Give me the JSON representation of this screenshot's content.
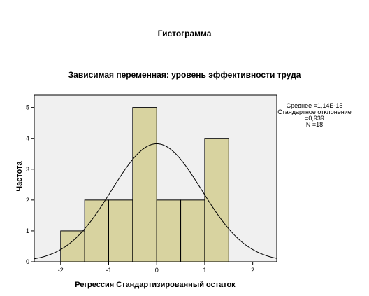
{
  "chart_data": {
    "type": "bar",
    "title": "Гистограмма",
    "subtitle": "Зависимая переменная: уровень эффективности труда",
    "xlabel": "Регрессия Стандартизированный остаток",
    "ylabel": "Частота",
    "xlim": [
      -2.55,
      2.5
    ],
    "ylim": [
      0,
      5.4
    ],
    "x_ticks": [
      "-2",
      "-1",
      "0",
      "1",
      "2"
    ],
    "y_ticks": [
      "0",
      "1",
      "2",
      "3",
      "4",
      "5"
    ],
    "bins": [
      {
        "from": -2.0,
        "to": -1.5,
        "count": 1
      },
      {
        "from": -1.5,
        "to": -1.0,
        "count": 2
      },
      {
        "from": -1.0,
        "to": -0.5,
        "count": 2
      },
      {
        "from": -0.5,
        "to": 0.0,
        "count": 5
      },
      {
        "from": 0.0,
        "to": 0.5,
        "count": 2
      },
      {
        "from": 0.5,
        "to": 1.0,
        "count": 2
      },
      {
        "from": 1.0,
        "to": 1.5,
        "count": 4
      }
    ],
    "normal_curve": {
      "mean": 0.0,
      "sd": 0.939,
      "n": 18,
      "bin_width": 0.5
    },
    "stats": [
      "Среднее =1,14E-15",
      "Стандартное отклонение",
      "=0,939",
      "N =18"
    ],
    "grid": false,
    "colors": {
      "bar_fill": "#d8d3a0",
      "bar_stroke": "#000000",
      "plot_background": "#f0f0f0",
      "curve": "#000000"
    }
  }
}
